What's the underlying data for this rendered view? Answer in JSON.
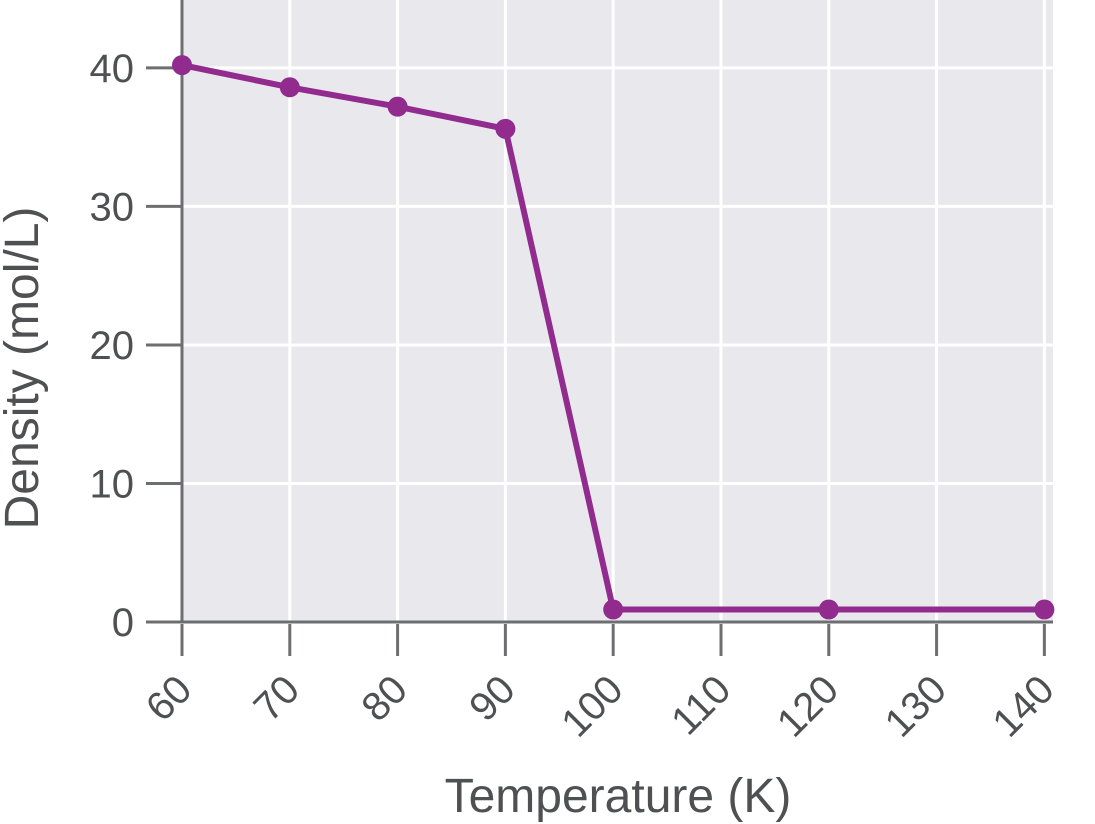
{
  "chart_data": {
    "type": "line",
    "title": "",
    "xlabel": "Temperature (K)",
    "ylabel": "Density (mol/L)",
    "series": [
      {
        "name": "density",
        "x": [
          60,
          70,
          80,
          90,
          100,
          120,
          140
        ],
        "y": [
          40.2,
          38.6,
          37.2,
          35.6,
          0.9,
          0.9,
          0.9
        ]
      }
    ],
    "x_ticks": [
      60,
      70,
      80,
      90,
      100,
      110,
      120,
      130,
      140
    ],
    "x_tick_labels": [
      "60",
      "70",
      "80",
      "90",
      "100",
      "110",
      "120",
      "130",
      "140"
    ],
    "y_ticks": [
      0,
      10,
      20,
      30,
      40
    ],
    "y_tick_labels": [
      "0",
      "10",
      "20",
      "30",
      "40"
    ],
    "xlim": [
      60,
      140.8
    ],
    "ylim": [
      0,
      44.9
    ],
    "grid": true,
    "legend_position": "none",
    "x_tick_label_rotation_deg": -45,
    "colors": {
      "line": "#912b8e",
      "marker": "#912b8e",
      "plot_background": "#e9e9ed",
      "gridline": "#ffffff",
      "axis": "#6d6e71",
      "tick_label_text": "#4f5052",
      "axis_label_text": "#4f5052",
      "page_background": "#ffffff"
    }
  }
}
